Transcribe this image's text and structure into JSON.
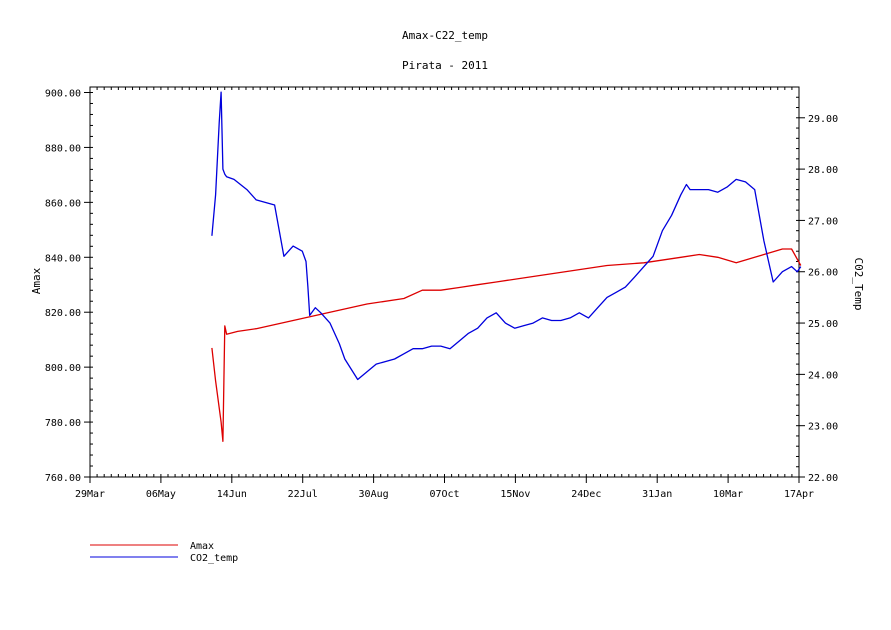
{
  "chart_data": {
    "type": "line",
    "title": "Amax-C22_temp",
    "subtitle": "Pirata - 2011",
    "x_ticks": [
      "29Mar",
      "06May",
      "14Jun",
      "22Jul",
      "30Aug",
      "07Oct",
      "15Nov",
      "24Dec",
      "31Jan",
      "10Mar",
      "17Apr"
    ],
    "x_range": [
      "29Mar",
      "17Apr"
    ],
    "y_left": {
      "label": "Amax",
      "range": [
        760,
        902
      ],
      "ticks": [
        "760.00",
        "780.00",
        "800.00",
        "820.00",
        "840.00",
        "860.00",
        "880.00",
        "900.00"
      ]
    },
    "y_right": {
      "label": "C02_Temp",
      "range": [
        22.0,
        29.6
      ],
      "ticks": [
        "22.00",
        "23.00",
        "24.00",
        "25.00",
        "26.00",
        "27.00",
        "28.00",
        "29.00"
      ]
    },
    "grid": false,
    "legend_position": "bottom-left",
    "series": [
      {
        "name": "Amax",
        "axis": "left",
        "color": "#dd0000",
        "x_days": [
          66,
          68,
          71,
          72,
          73,
          74,
          80,
          90,
          110,
          130,
          150,
          170,
          180,
          190,
          200,
          210,
          220,
          240,
          260,
          280,
          300,
          320,
          330,
          340,
          350,
          355,
          360,
          365,
          370,
          375,
          380,
          385
        ],
        "y": [
          807,
          795,
          780,
          773,
          815,
          812,
          813,
          814,
          817,
          820,
          823,
          825,
          828,
          828,
          829,
          830,
          831,
          833,
          835,
          837,
          838,
          840,
          841,
          840,
          838,
          839,
          840,
          841,
          842,
          843,
          843,
          837
        ]
      },
      {
        "name": "CO2_temp",
        "axis": "right",
        "color": "#0000dd",
        "x_days": [
          66,
          68,
          70,
          71,
          72,
          73,
          74,
          78,
          85,
          90,
          100,
          105,
          110,
          115,
          117,
          118,
          119,
          122,
          125,
          130,
          135,
          138,
          145,
          155,
          165,
          170,
          175,
          180,
          185,
          190,
          195,
          200,
          205,
          210,
          215,
          220,
          225,
          230,
          235,
          240,
          245,
          250,
          255,
          260,
          265,
          270,
          275,
          280,
          285,
          290,
          295,
          300,
          305,
          310,
          315,
          320,
          323,
          325,
          330,
          335,
          340,
          345,
          350,
          355,
          360,
          365,
          370,
          375,
          380,
          383,
          385
        ],
        "y": [
          26.7,
          27.5,
          28.9,
          29.5,
          28.0,
          27.9,
          27.85,
          27.8,
          27.6,
          27.4,
          27.3,
          26.3,
          26.5,
          26.4,
          26.2,
          25.7,
          25.15,
          25.3,
          25.2,
          25.0,
          24.6,
          24.3,
          23.9,
          24.2,
          24.3,
          24.4,
          24.5,
          24.5,
          24.55,
          24.55,
          24.5,
          24.65,
          24.8,
          24.9,
          25.1,
          25.2,
          25.0,
          24.9,
          24.95,
          25.0,
          25.1,
          25.05,
          25.05,
          25.1,
          25.2,
          25.1,
          25.3,
          25.5,
          25.6,
          25.7,
          25.9,
          26.1,
          26.3,
          26.8,
          27.1,
          27.5,
          27.7,
          27.6,
          27.6,
          27.6,
          27.55,
          27.65,
          27.8,
          27.75,
          27.6,
          26.6,
          25.8,
          26.0,
          26.1,
          26.0,
          26.1
        ]
      }
    ]
  }
}
